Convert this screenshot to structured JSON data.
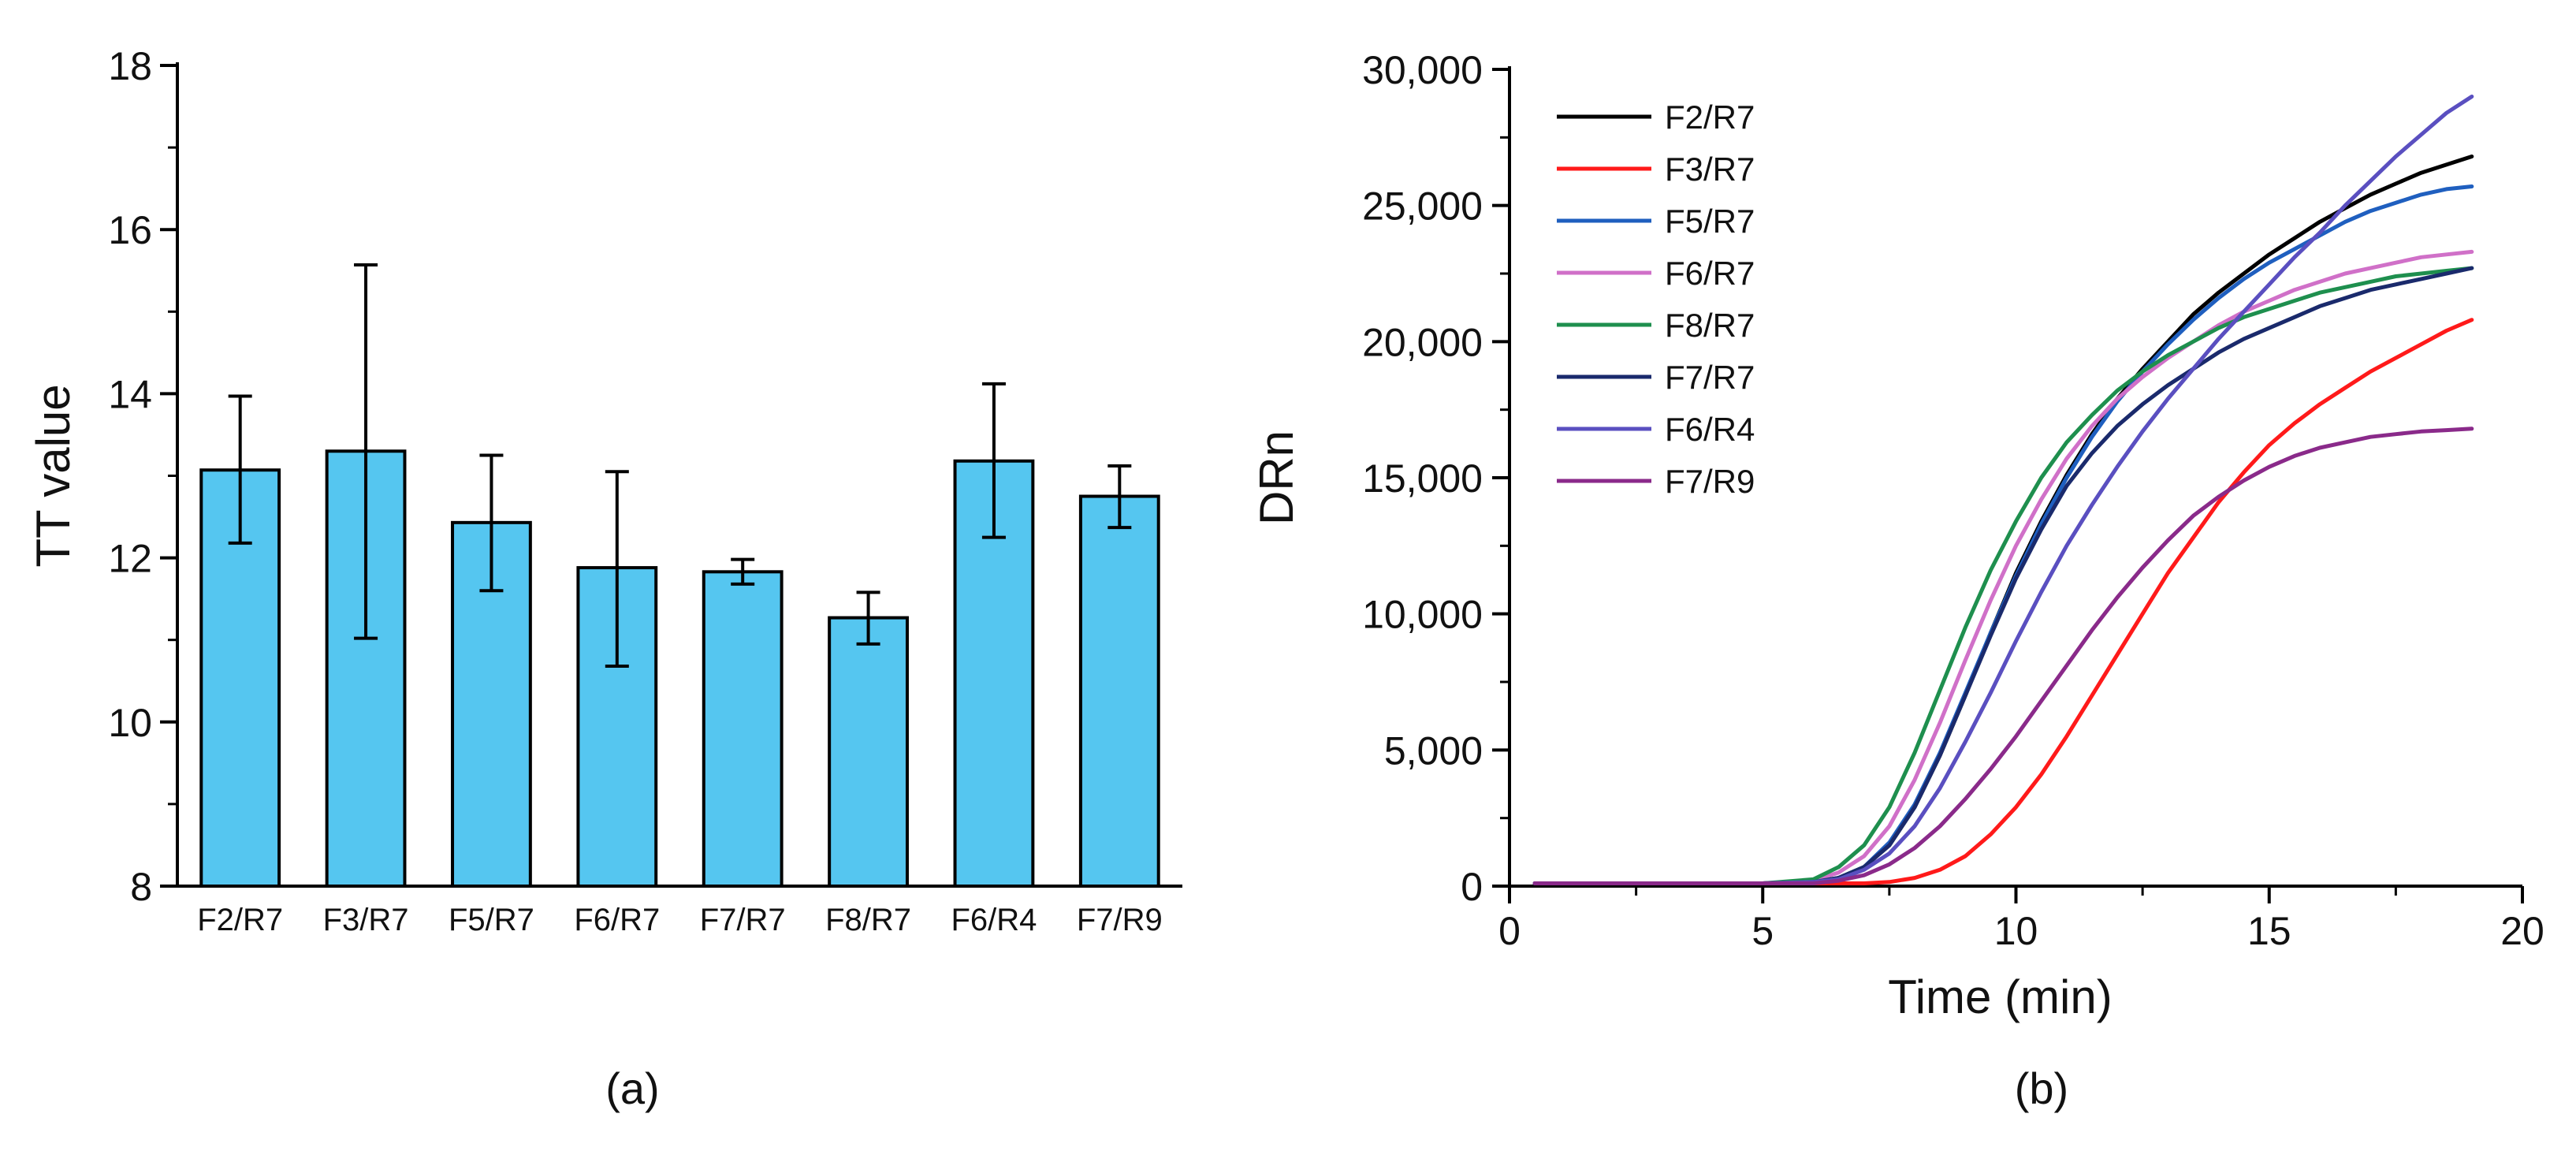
{
  "chart_data": [
    {
      "type": "bar",
      "panel_label": "(a)",
      "ylabel": "TT value",
      "xlabel": "",
      "ylim": [
        8,
        18
      ],
      "yticks": [
        "8",
        "10",
        "12",
        "14",
        "16",
        "18"
      ],
      "categories": [
        "F2/R7",
        "F3/R7",
        "F5/R7",
        "F6/R7",
        "F7/R7",
        "F8/R7",
        "F6/R4",
        "F7/R9"
      ],
      "values": [
        13.07,
        13.3,
        12.43,
        11.88,
        11.83,
        11.27,
        13.18,
        12.75
      ],
      "error_upper": [
        13.97,
        15.57,
        13.25,
        13.05,
        11.98,
        11.58,
        14.12,
        13.12
      ],
      "error_lower": [
        12.18,
        11.02,
        11.6,
        10.68,
        11.68,
        10.95,
        12.25,
        12.37
      ],
      "bar_color": "#55C6F0",
      "grid": false
    },
    {
      "type": "line",
      "panel_label": "(b)",
      "xlabel": "Time (min)",
      "ylabel": "DRn",
      "xlim": [
        0,
        20
      ],
      "ylim": [
        0,
        30000
      ],
      "xticks": [
        "0",
        "5",
        "10",
        "15",
        "20"
      ],
      "yticks": [
        "0",
        "5,000",
        "10,000",
        "15,000",
        "20,000",
        "25,000",
        "30,000"
      ],
      "legend_position": "top-left",
      "grid": false,
      "x": [
        0.5,
        1,
        2,
        3,
        4,
        5,
        6,
        6.5,
        7,
        7.5,
        8,
        8.5,
        9,
        9.5,
        10,
        10.5,
        11,
        11.5,
        12,
        12.5,
        13,
        13.5,
        14,
        14.5,
        15,
        15.5,
        16,
        16.5,
        17,
        17.5,
        18,
        18.5,
        19,
        19.5,
        20
      ],
      "series": [
        {
          "name": "F2/R7",
          "color": "#000000",
          "values": [
            100,
            100,
            100,
            100,
            100,
            100,
            150,
            300,
            700,
            1500,
            2900,
            4800,
            7000,
            9300,
            11500,
            13400,
            15100,
            16600,
            17900,
            19000,
            20000,
            21000,
            21800,
            22500,
            23200,
            23800,
            24400,
            24900,
            25400,
            25800,
            26200,
            26500,
            26800,
            null,
            null
          ]
        },
        {
          "name": "F3/R7",
          "color": "#FF1A1A",
          "values": [
            100,
            100,
            100,
            100,
            100,
            100,
            100,
            100,
            100,
            150,
            300,
            600,
            1100,
            1900,
            2900,
            4100,
            5500,
            7000,
            8500,
            10000,
            11500,
            12800,
            14100,
            15200,
            16200,
            17000,
            17700,
            18300,
            18900,
            19400,
            19900,
            20400,
            20800,
            null,
            null
          ]
        },
        {
          "name": "F5/R7",
          "color": "#1F5FBF",
          "values": [
            100,
            100,
            100,
            100,
            100,
            100,
            150,
            300,
            700,
            1600,
            3000,
            4900,
            7100,
            9300,
            11400,
            13300,
            15000,
            16500,
            17800,
            18900,
            19900,
            20800,
            21600,
            22300,
            22900,
            23400,
            23900,
            24400,
            24800,
            25100,
            25400,
            25600,
            25700,
            null,
            null
          ]
        },
        {
          "name": "F6/R7",
          "color": "#D070C8",
          "values": [
            100,
            100,
            100,
            100,
            100,
            100,
            200,
            500,
            1100,
            2200,
            3900,
            6000,
            8300,
            10500,
            12500,
            14200,
            15700,
            16900,
            17900,
            18700,
            19400,
            20000,
            20600,
            21100,
            21500,
            21900,
            22200,
            22500,
            22700,
            22900,
            23100,
            23200,
            23300,
            null,
            null
          ]
        },
        {
          "name": "F8/R7",
          "color": "#1E8F4E",
          "values": [
            100,
            100,
            100,
            100,
            100,
            100,
            250,
            700,
            1500,
            2900,
            4900,
            7200,
            9500,
            11600,
            13400,
            15000,
            16300,
            17300,
            18200,
            18900,
            19500,
            20000,
            20500,
            20900,
            21200,
            21500,
            21800,
            22000,
            22200,
            22400,
            22500,
            22600,
            22700,
            null,
            null
          ]
        },
        {
          "name": "F7/R7",
          "color": "#1A2A6C",
          "values": [
            100,
            100,
            100,
            100,
            100,
            100,
            150,
            300,
            700,
            1500,
            2900,
            4800,
            7000,
            9200,
            11300,
            13100,
            14700,
            15900,
            16900,
            17700,
            18400,
            19000,
            19600,
            20100,
            20500,
            20900,
            21300,
            21600,
            21900,
            22100,
            22300,
            22500,
            22700,
            null,
            null
          ]
        },
        {
          "name": "F6/R4",
          "color": "#5A4FC0",
          "values": [
            100,
            100,
            100,
            100,
            100,
            100,
            150,
            250,
            600,
            1200,
            2200,
            3600,
            5300,
            7100,
            9000,
            10800,
            12500,
            14000,
            15400,
            16700,
            17900,
            19000,
            20100,
            21100,
            22100,
            23100,
            24000,
            25000,
            25900,
            26800,
            27600,
            28400,
            29000,
            null,
            null
          ]
        },
        {
          "name": "F7/R9",
          "color": "#8A2A8A",
          "values": [
            100,
            100,
            100,
            100,
            100,
            100,
            100,
            200,
            400,
            800,
            1400,
            2200,
            3200,
            4300,
            5500,
            6800,
            8100,
            9400,
            10600,
            11700,
            12700,
            13600,
            14300,
            14900,
            15400,
            15800,
            16100,
            16300,
            16500,
            16600,
            16700,
            16750,
            16800,
            null,
            null
          ]
        }
      ]
    }
  ]
}
